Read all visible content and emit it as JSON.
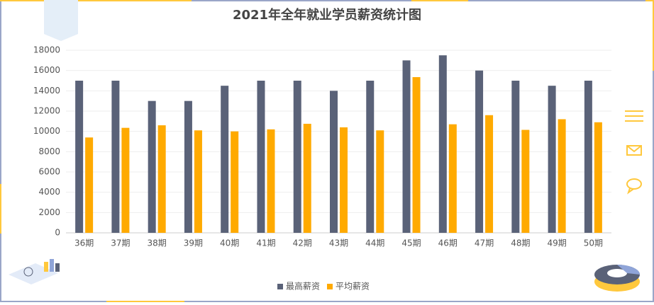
{
  "chart_data": {
    "type": "bar",
    "title": "2021年全年就业学员薪资统计图",
    "categories": [
      "36期",
      "37期",
      "38期",
      "39期",
      "40期",
      "41期",
      "42期",
      "43期",
      "44期",
      "45期",
      "46期",
      "47期",
      "48期",
      "49期",
      "50期"
    ],
    "series": [
      {
        "name": "最高薪资",
        "color": "#5a6278",
        "values": [
          15000,
          15000,
          13000,
          13000,
          14500,
          15000,
          15000,
          14000,
          15000,
          17000,
          17500,
          16000,
          15000,
          14500,
          15000
        ]
      },
      {
        "name": "平均薪资",
        "color": "#ffaa00",
        "values": [
          9400,
          10350,
          10600,
          10100,
          10000,
          10200,
          10750,
          10400,
          10100,
          15350,
          10700,
          11600,
          10150,
          11200,
          10900
        ]
      }
    ],
    "ylim": [
      0,
      18000
    ],
    "yticks": [
      0,
      2000,
      4000,
      6000,
      8000,
      10000,
      12000,
      14000,
      16000,
      18000
    ],
    "grid": true,
    "legend": "bottom"
  }
}
